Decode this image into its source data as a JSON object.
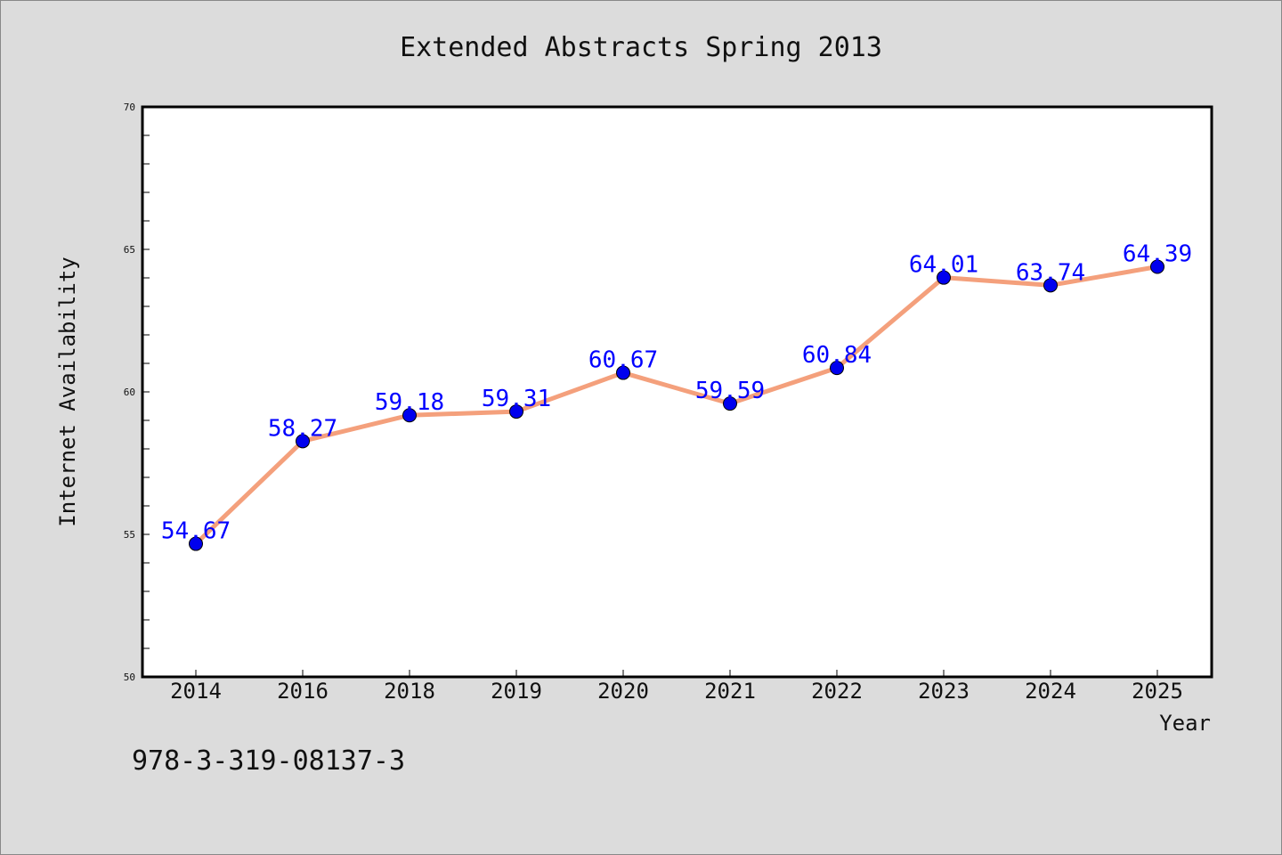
{
  "chart_data": {
    "type": "line",
    "title": "Extended Abstracts Spring 2013",
    "xlabel": "Year",
    "ylabel": "Internet Availability",
    "categories": [
      "2014",
      "2016",
      "2018",
      "2019",
      "2020",
      "2021",
      "2022",
      "2023",
      "2024",
      "2025"
    ],
    "series": [
      {
        "values": [
          54.67,
          58.27,
          59.18,
          59.31,
          60.67,
          59.59,
          60.84,
          64.01,
          63.74,
          64.39
        ],
        "labels": [
          "54.67",
          "58.27",
          "59.18",
          "59.31",
          "60.67",
          "59.59",
          "60.84",
          "64.01",
          "63.74",
          "64.39"
        ],
        "line_color": "#f4a07c",
        "marker_color": "#0000ee",
        "label_color": "#0000ff"
      }
    ],
    "ylim": [
      50,
      70
    ],
    "yticks": [
      "50",
      "55",
      "60",
      "65",
      "70"
    ],
    "grid": false,
    "legend": "none",
    "footer": "978-3-319-08137-3"
  }
}
